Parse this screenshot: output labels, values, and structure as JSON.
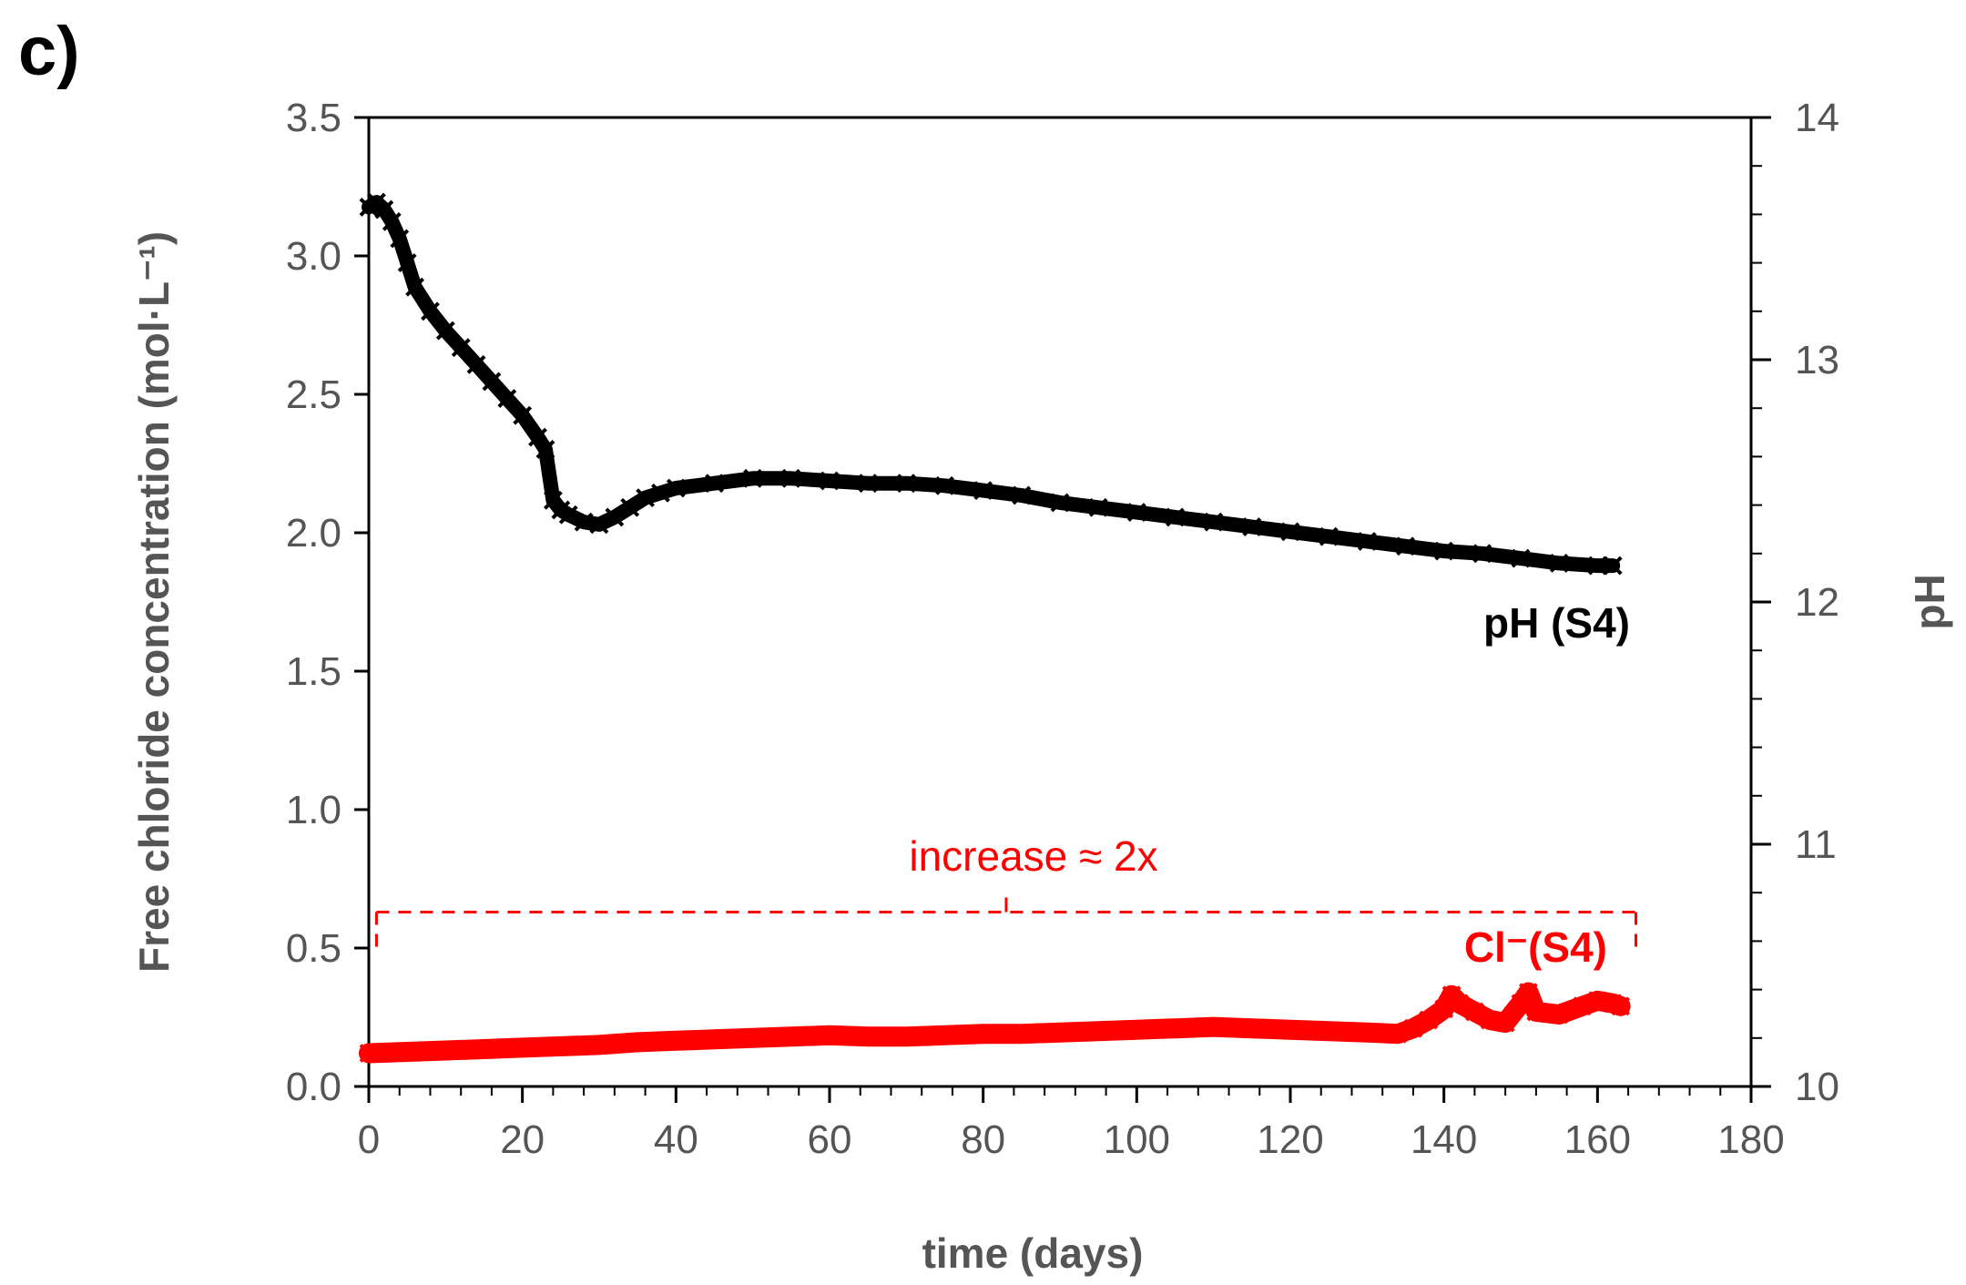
{
  "panel_label": "c)",
  "chart_data": {
    "type": "scatter",
    "xlabel": "time (days)",
    "ylabel": "Free chloride concentration (mol·L⁻¹)",
    "ylabel_right": "pH",
    "xlim": [
      0,
      180
    ],
    "ylim": [
      0,
      3.5
    ],
    "ylim_right": [
      10,
      14
    ],
    "x_ticks": [
      "0",
      "20",
      "40",
      "60",
      "80",
      "100",
      "120",
      "140",
      "160",
      "180"
    ],
    "y_ticks": [
      "0.0",
      "0.5",
      "1.0",
      "1.5",
      "2.0",
      "2.5",
      "3.0",
      "3.5"
    ],
    "y_right_ticks": [
      "10",
      "11",
      "12",
      "13",
      "14"
    ],
    "series": [
      {
        "name": "pH (S4)",
        "axis": "right",
        "color": "#000000",
        "marker": "x",
        "x": [
          0,
          1,
          2,
          3,
          4,
          5,
          6,
          8,
          10,
          12,
          14,
          16,
          18,
          20,
          22,
          23,
          24,
          25,
          26,
          28,
          30,
          32,
          34,
          36,
          38,
          40,
          45,
          50,
          55,
          60,
          65,
          70,
          75,
          80,
          85,
          90,
          95,
          100,
          105,
          110,
          115,
          120,
          125,
          130,
          135,
          140,
          145,
          150,
          155,
          160,
          162
        ],
        "values": [
          13.63,
          13.65,
          13.62,
          13.57,
          13.5,
          13.4,
          13.3,
          13.2,
          13.12,
          13.05,
          12.98,
          12.91,
          12.84,
          12.77,
          12.68,
          12.63,
          12.42,
          12.38,
          12.36,
          12.33,
          12.32,
          12.35,
          12.39,
          12.43,
          12.45,
          12.47,
          12.49,
          12.51,
          12.51,
          12.5,
          12.49,
          12.49,
          12.48,
          12.46,
          12.44,
          12.41,
          12.39,
          12.37,
          12.35,
          12.33,
          12.31,
          12.29,
          12.27,
          12.25,
          12.23,
          12.21,
          12.2,
          12.18,
          12.16,
          12.15,
          12.15
        ]
      },
      {
        "name": "Cl⁻(S4)",
        "axis": "left",
        "color": "#ff0000",
        "marker": "x",
        "x": [
          0,
          5,
          10,
          15,
          20,
          25,
          30,
          35,
          40,
          45,
          50,
          55,
          60,
          65,
          70,
          75,
          80,
          85,
          90,
          95,
          100,
          105,
          110,
          115,
          120,
          125,
          130,
          134,
          136,
          138,
          140,
          141,
          142,
          144,
          146,
          148,
          150,
          151,
          152,
          155,
          158,
          160,
          162,
          163
        ],
        "values": [
          0.12,
          0.125,
          0.13,
          0.135,
          0.14,
          0.145,
          0.15,
          0.16,
          0.165,
          0.17,
          0.175,
          0.18,
          0.185,
          0.18,
          0.18,
          0.185,
          0.19,
          0.19,
          0.195,
          0.2,
          0.205,
          0.21,
          0.215,
          0.21,
          0.205,
          0.2,
          0.195,
          0.19,
          0.21,
          0.24,
          0.28,
          0.33,
          0.3,
          0.27,
          0.24,
          0.23,
          0.3,
          0.34,
          0.27,
          0.26,
          0.29,
          0.31,
          0.3,
          0.29
        ]
      }
    ],
    "annotations": {
      "series_label_pH": "pH (S4)",
      "series_label_cl": "Cl⁻(S4)",
      "bracket_text": "increase ≈ 2x",
      "bracket_x_range": [
        1,
        165
      ],
      "bracket_y": 0.63
    }
  }
}
